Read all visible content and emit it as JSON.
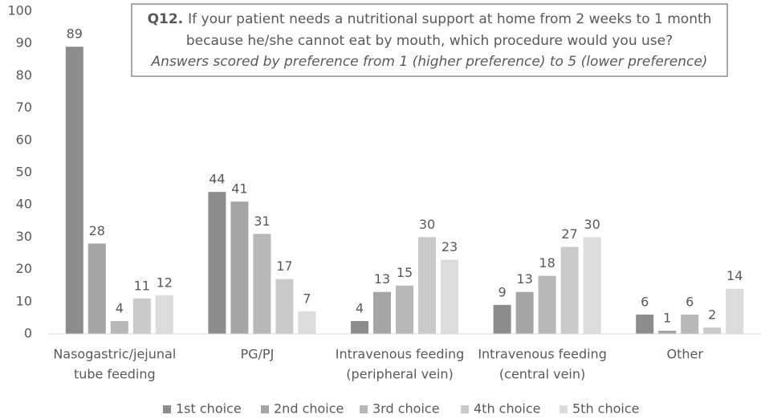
{
  "chart_data": {
    "type": "bar",
    "title_label": "Q12.",
    "title": [
      "If your patient needs a nutritional support at home from 2 weeks to 1 month",
      "because he/she cannot eat by mouth, which procedure would you use?"
    ],
    "subtitle": "Answers scored by preference from 1 (higher preference) to 5 (lower preference)",
    "categories": [
      [
        "Nasogastric/jejunal",
        "tube feeding"
      ],
      [
        "PG/PJ"
      ],
      [
        "Intravenous feeding",
        "(peripheral vein)"
      ],
      [
        "Intravenous feeding",
        "(central vein)"
      ],
      [
        "Other"
      ]
    ],
    "series": [
      {
        "name": "1st choice",
        "color": "#8c8c8c",
        "values": [
          89,
          44,
          4,
          9,
          6
        ]
      },
      {
        "name": "2nd choice",
        "color": "#a5a5a5",
        "values": [
          28,
          41,
          13,
          13,
          1
        ]
      },
      {
        "name": "3rd choice",
        "color": "#b8b8b8",
        "values": [
          4,
          31,
          15,
          18,
          6
        ]
      },
      {
        "name": "4th choice",
        "color": "#cacaca",
        "values": [
          11,
          17,
          30,
          27,
          2
        ]
      },
      {
        "name": "5th choice",
        "color": "#dcdcdc",
        "values": [
          12,
          7,
          23,
          30,
          14
        ]
      }
    ],
    "ylim": [
      0,
      100
    ],
    "yticks": [
      0,
      10,
      20,
      30,
      40,
      50,
      60,
      70,
      80,
      90,
      100
    ],
    "grid": false,
    "legend": "bottom"
  }
}
